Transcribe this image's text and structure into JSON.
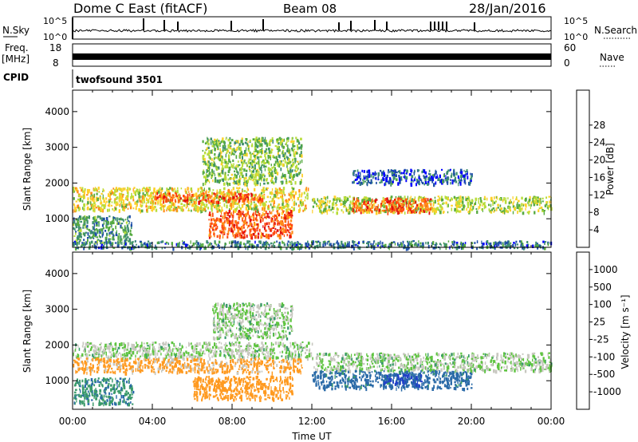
{
  "header": {
    "station": "Dome C East (fitACF)",
    "beam": "Beam 08",
    "date": "28/Jan/2016"
  },
  "top_panels": {
    "nsky_label": "N.Sky",
    "nsky_ticks": [
      "10^5",
      "10^0"
    ],
    "nsearch_label": "N.Search",
    "nsearch_ticks": [
      "10^5",
      "10^0"
    ],
    "freq_label": "Freq.",
    "freq_unit": "[MHz]",
    "freq_ticks": [
      "18",
      "8"
    ],
    "nave_label": "Nave",
    "nave_ticks": [
      "60",
      "0"
    ],
    "cpid_label": "CPID",
    "cpid_value": "twofsound 3501"
  },
  "colors": {
    "power_scale": [
      "#0000ff",
      "#1f4fa8",
      "#3f8f6f",
      "#55aa40",
      "#b8dd3a",
      "#ffd02a",
      "#ff8c1a",
      "#ff4a10",
      "#e01010"
    ],
    "velocity_scale": [
      "#e81010",
      "#ff5a10",
      "#ff9a20",
      "#c8c8c0",
      "#c8c8c0",
      "#5ec440",
      "#3a9a6a",
      "#2a6aa8",
      "#2040c8"
    ]
  },
  "chart_data": [
    {
      "type": "heatmap",
      "name": "power",
      "ylabel": "Slant Range [km]",
      "yticks": [
        1000,
        2000,
        3000,
        4000
      ],
      "ylim": [
        200,
        4600
      ],
      "xlim": [
        0,
        24
      ],
      "colorbar": {
        "label": "Power [dB]",
        "ticks": [
          "4",
          "8",
          "12",
          "16",
          "20",
          "24",
          "28"
        ],
        "range": [
          0,
          32
        ]
      },
      "approx_clusters": [
        {
          "t0": 0.0,
          "t1": 11.8,
          "r0": 1250,
          "r1": 1900,
          "level": 18
        },
        {
          "t0": 4.0,
          "t1": 9.5,
          "r0": 1500,
          "r1": 1750,
          "level": 26
        },
        {
          "t0": 6.5,
          "t1": 11.5,
          "r0": 2000,
          "r1": 3300,
          "level": 14
        },
        {
          "t0": 6.8,
          "t1": 11.0,
          "r0": 500,
          "r1": 1250,
          "level": 26
        },
        {
          "t0": 12.0,
          "t1": 24.0,
          "r0": 1200,
          "r1": 1650,
          "level": 16
        },
        {
          "t0": 14.0,
          "t1": 18.0,
          "r0": 1200,
          "r1": 1600,
          "level": 26
        },
        {
          "t0": 0.0,
          "t1": 3.0,
          "r0": 350,
          "r1": 1100,
          "level": 10
        },
        {
          "t0": 14.0,
          "t1": 20.0,
          "r0": 2000,
          "r1": 2400,
          "level": 6
        },
        {
          "t0": 0.0,
          "t1": 24.0,
          "r0": 200,
          "r1": 400,
          "level": 8
        }
      ]
    },
    {
      "type": "heatmap",
      "name": "velocity",
      "ylabel": "Slant Range [km]",
      "yticks": [
        1000,
        2000,
        3000,
        4000
      ],
      "ylim": [
        200,
        4600
      ],
      "xlim": [
        0,
        24
      ],
      "xticks": [
        "00:00",
        "04:00",
        "08:00",
        "12:00",
        "16:00",
        "20:00",
        "00:00"
      ],
      "xlabel": "Time UT",
      "colorbar": {
        "label": "Velocity [m s⁻¹]",
        "ticks": [
          "-1000",
          "-500",
          "-100",
          "-25",
          "25",
          "100",
          "500",
          "1000"
        ]
      },
      "approx_clusters": [
        {
          "t0": 0.0,
          "t1": 12.0,
          "r0": 1650,
          "r1": 2100,
          "level": 0
        },
        {
          "t0": 0.0,
          "t1": 11.5,
          "r0": 1250,
          "r1": 1650,
          "level": -150
        },
        {
          "t0": 6.0,
          "t1": 11.0,
          "r0": 500,
          "r1": 1150,
          "level": -300
        },
        {
          "t0": 7.0,
          "t1": 11.0,
          "r0": 2200,
          "r1": 3200,
          "level": 0
        },
        {
          "t0": 12.0,
          "t1": 24.0,
          "r0": 1300,
          "r1": 1800,
          "level": 0
        },
        {
          "t0": 12.0,
          "t1": 20.0,
          "r0": 800,
          "r1": 1300,
          "level": 200
        },
        {
          "t0": 15.5,
          "t1": 17.5,
          "r0": 900,
          "r1": 1200,
          "level": 700
        },
        {
          "t0": 0.0,
          "t1": 3.0,
          "r0": 350,
          "r1": 1100,
          "level": 80
        }
      ]
    }
  ]
}
